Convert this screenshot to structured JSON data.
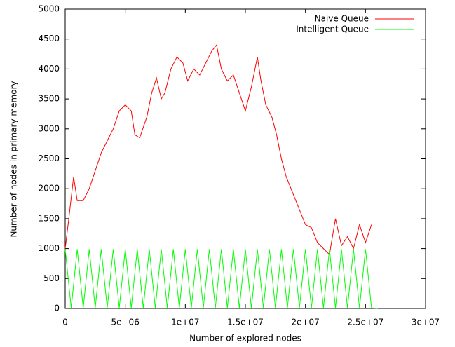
{
  "chart_data": {
    "type": "line",
    "xlabel": "Number of explored nodes",
    "ylabel": "Number of nodes in primary memory",
    "xlim": [
      0,
      30000000
    ],
    "xticks": [
      0,
      {
        "value": 5000000,
        "label": "5e+06"
      },
      {
        "value": 10000000,
        "label": "1e+07"
      },
      {
        "value": 15000000,
        "label": "1.5e+07"
      },
      {
        "value": 20000000,
        "label": "2e+07"
      },
      {
        "value": 25000000,
        "label": "2.5e+07"
      },
      {
        "value": 30000000,
        "label": "3e+07"
      }
    ],
    "ylim": [
      0,
      5000
    ],
    "yticks": [
      0,
      500,
      1000,
      1500,
      2000,
      2500,
      3000,
      3500,
      4000,
      4500,
      5000
    ],
    "legend": "top-right",
    "series": [
      {
        "name": "Naive Queue",
        "color": "#ff0000",
        "x": [
          0,
          300000,
          700000,
          1000000,
          1500000,
          2000000,
          2500000,
          3000000,
          3500000,
          4000000,
          4500000,
          5000000,
          5500000,
          5800000,
          6200000,
          6800000,
          7200000,
          7600000,
          8000000,
          8300000,
          8800000,
          9300000,
          9800000,
          10200000,
          10700000,
          11200000,
          11700000,
          12200000,
          12600000,
          13000000,
          13500000,
          14000000,
          14500000,
          15000000,
          15500000,
          16000000,
          16300000,
          16700000,
          17200000,
          17600000,
          18000000,
          18400000,
          18800000,
          19200000,
          19600000,
          20000000,
          20500000,
          21000000,
          21500000,
          22000000,
          22500000,
          23000000,
          23500000,
          24000000,
          24500000,
          25000000,
          25500000
        ],
        "values": [
          1000,
          1500,
          2200,
          1800,
          1800,
          2000,
          2300,
          2600,
          2800,
          3000,
          3300,
          3400,
          3300,
          2900,
          2850,
          3200,
          3600,
          3850,
          3500,
          3600,
          4000,
          4200,
          4100,
          3800,
          4000,
          3900,
          4100,
          4300,
          4400,
          4000,
          3800,
          3900,
          3600,
          3300,
          3700,
          4200,
          3800,
          3400,
          3200,
          2900,
          2500,
          2200,
          2000,
          1800,
          1600,
          1400,
          1350,
          1100,
          1000,
          900,
          1500,
          1050,
          1200,
          1000,
          1400,
          1100,
          1400
        ]
      },
      {
        "name": "Intelligent Queue",
        "color": "#00ff00",
        "x": [
          0,
          500000,
          1000000,
          1500000,
          2000000,
          2500000,
          3000000,
          3500000,
          4000000,
          4500000,
          5000000,
          5500000,
          6000000,
          6500000,
          7000000,
          7500000,
          8000000,
          8500000,
          9000000,
          9500000,
          10000000,
          10500000,
          11000000,
          11500000,
          12000000,
          12500000,
          13000000,
          13500000,
          14000000,
          14500000,
          15000000,
          15500000,
          16000000,
          16500000,
          17000000,
          17500000,
          18000000,
          18500000,
          19000000,
          19500000,
          20000000,
          20500000,
          21000000,
          21500000,
          22000000,
          22500000,
          23000000,
          23500000,
          24000000,
          24500000,
          25000000,
          25500000,
          26000000
        ],
        "values": [
          990,
          10,
          990,
          10,
          990,
          10,
          990,
          10,
          990,
          10,
          990,
          10,
          990,
          10,
          990,
          10,
          990,
          10,
          990,
          10,
          990,
          10,
          990,
          10,
          990,
          10,
          990,
          10,
          990,
          10,
          990,
          10,
          990,
          10,
          990,
          10,
          990,
          10,
          990,
          10,
          990,
          10,
          990,
          10,
          990,
          10,
          990,
          10,
          990,
          10,
          990,
          10,
          0
        ]
      }
    ]
  }
}
